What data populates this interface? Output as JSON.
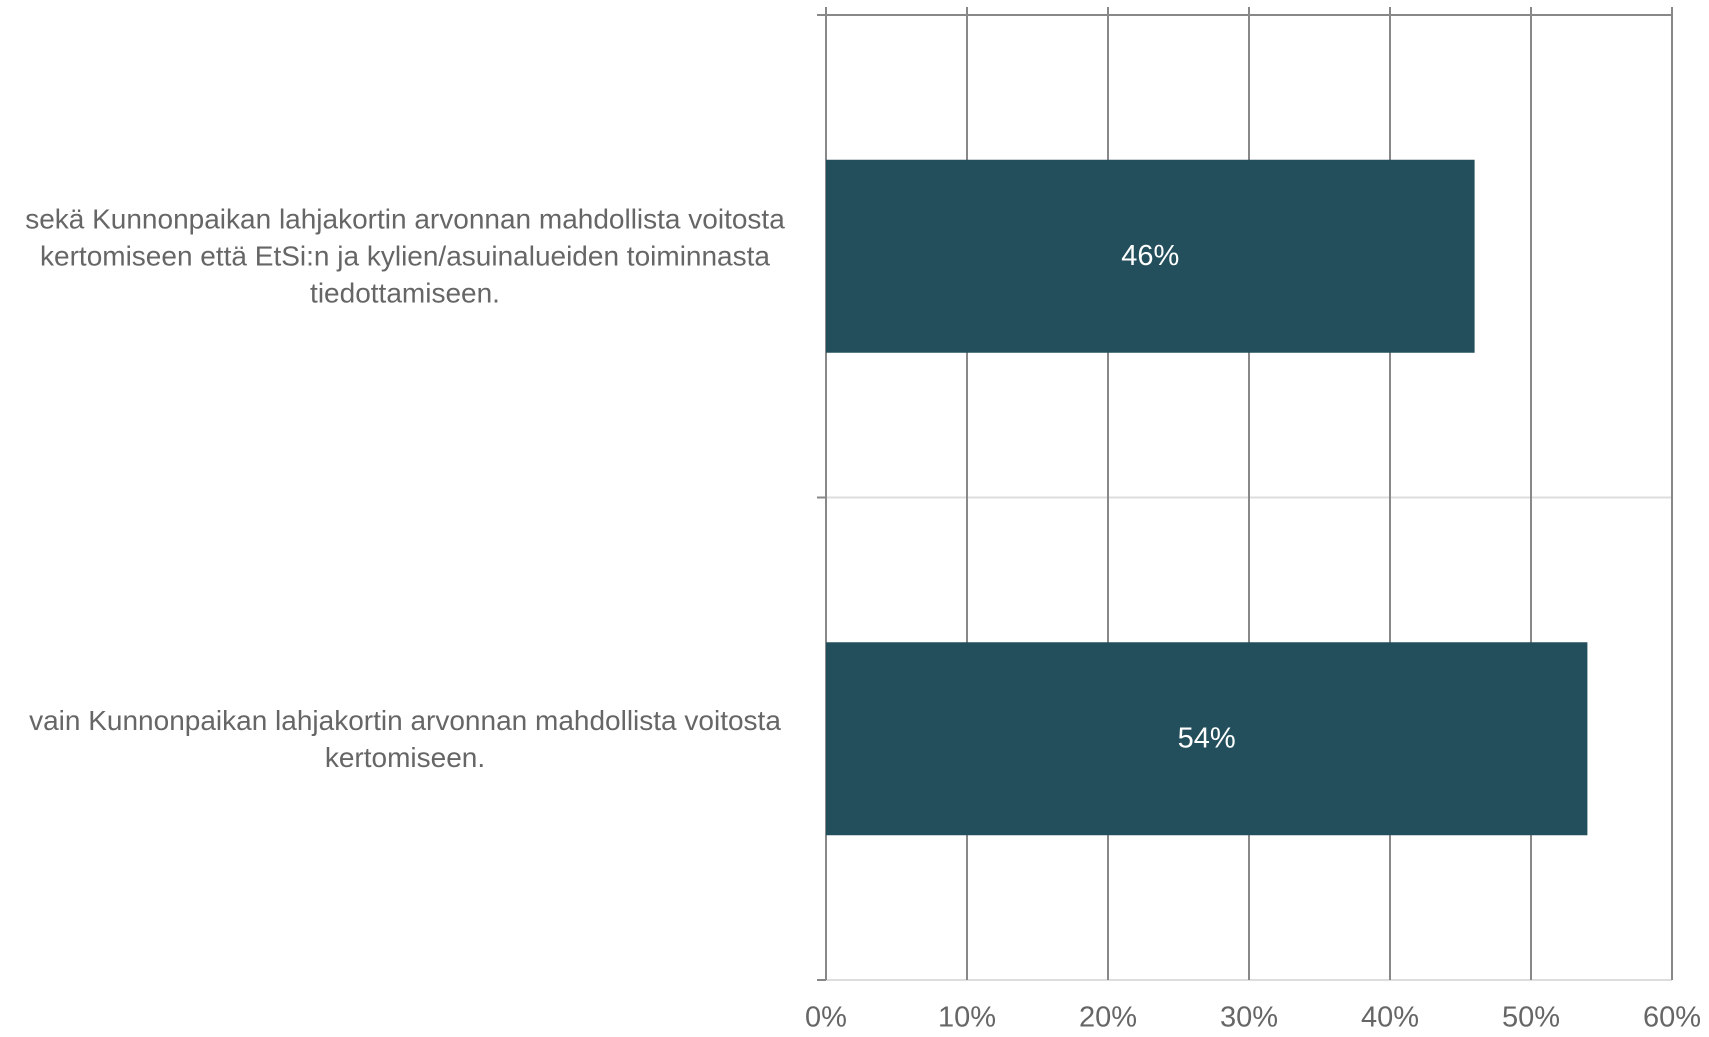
{
  "chart_data": {
    "type": "barh",
    "categories": [
      "sekä Kunnonpaikan lahjakortin arvonnan mahdollista voitosta kertomiseen että EtSi:n ja kylien/asuinalueiden toiminnasta tiedottamiseen.",
      "vain Kunnonpaikan lahjakortin arvonnan mahdollista voitosta kertomiseen."
    ],
    "values": [
      46,
      54
    ],
    "value_labels": [
      "46%",
      "54%"
    ],
    "color": "#234e5c",
    "xlim": [
      0,
      60
    ],
    "xticks": [
      {
        "value": 0,
        "label": "0%"
      },
      {
        "value": 10,
        "label": "10%"
      },
      {
        "value": 20,
        "label": "20%"
      },
      {
        "value": 30,
        "label": "30%"
      },
      {
        "value": 40,
        "label": "40%"
      },
      {
        "value": 50,
        "label": "50%"
      },
      {
        "value": 60,
        "label": "60%"
      }
    ],
    "grid": true
  }
}
